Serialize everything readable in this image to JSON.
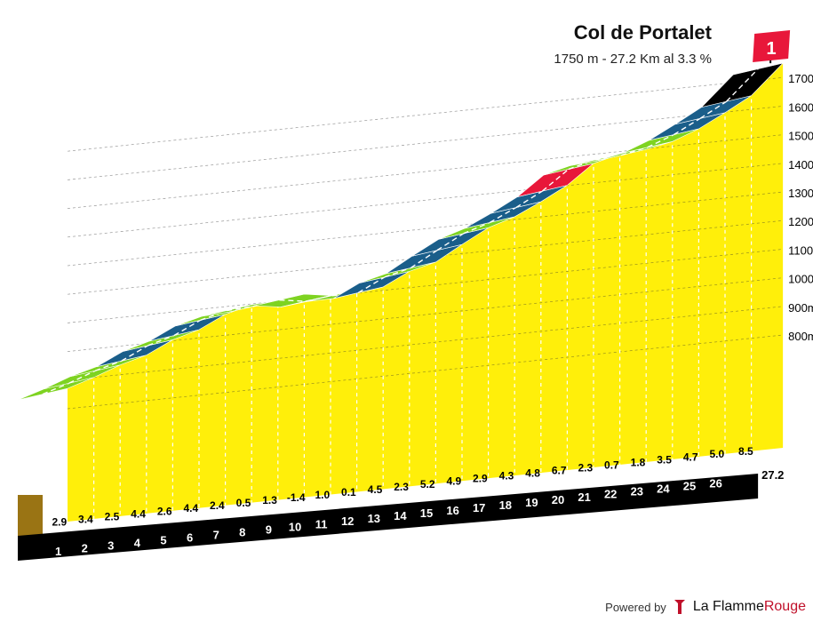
{
  "header": {
    "climb_name": "Col de Portalet",
    "summary": "1750 m - 27.2 Km al 3.3 %",
    "category": "1"
  },
  "footer": {
    "powered_by": "Powered by",
    "brand_part1": "La Flamme",
    "brand_part2": "Rouge"
  },
  "colors": {
    "fill": "#ffef0a",
    "grade_1": "#7ed321",
    "grade_2": "#1a5e8a",
    "grade_3": "#e8173a",
    "grade_4": "#000000",
    "base": "#9a7414"
  },
  "chart_data": {
    "type": "area",
    "title": "Col de Portalet",
    "distance_km": [
      0,
      1,
      2,
      3,
      4,
      5,
      6,
      7,
      8,
      9,
      10,
      11,
      12,
      13,
      14,
      15,
      16,
      17,
      18,
      19,
      20,
      21,
      22,
      23,
      24,
      25,
      26,
      27.2
    ],
    "km_markers": [
      "1",
      "2",
      "3",
      "4",
      "5",
      "6",
      "7",
      "8",
      "9",
      "10",
      "11",
      "12",
      "13",
      "14",
      "15",
      "16",
      "17",
      "18",
      "19",
      "20",
      "21",
      "22",
      "23",
      "24",
      "25",
      "26"
    ],
    "end_km_label": "27.2",
    "gradients": [
      2.9,
      3.4,
      2.5,
      4.4,
      2.6,
      4.4,
      2.4,
      0.5,
      1.3,
      -1.4,
      1.0,
      0.1,
      4.5,
      2.3,
      5.2,
      4.9,
      2.9,
      4.3,
      4.8,
      6.7,
      2.3,
      0.7,
      1.8,
      3.5,
      4.7,
      5.0,
      8.5
    ],
    "gradient_labels": [
      "2.9",
      "3.4",
      "2.5",
      "4.4",
      "2.6",
      "4.4",
      "2.4",
      "0.5",
      "1.3",
      "-1.4",
      "1.0",
      "0.1",
      "4.5",
      "2.3",
      "5.2",
      "4.9",
      "2.9",
      "4.3",
      "4.8",
      "6.7",
      "2.3",
      "0.7",
      "1.8",
      "3.5",
      "4.7",
      "5.0",
      "8.5"
    ],
    "altitude_labels": [
      "800m",
      "900m",
      "1000m",
      "1100m",
      "1200m",
      "1300m",
      "1400m",
      "1500m",
      "1600m",
      "1700m"
    ],
    "altitude_ticks": [
      800,
      900,
      1000,
      1100,
      1200,
      1300,
      1400,
      1500,
      1600,
      1700
    ],
    "summit_altitude": 1750,
    "length_km": 27.2,
    "average_gradient": 3.3
  }
}
